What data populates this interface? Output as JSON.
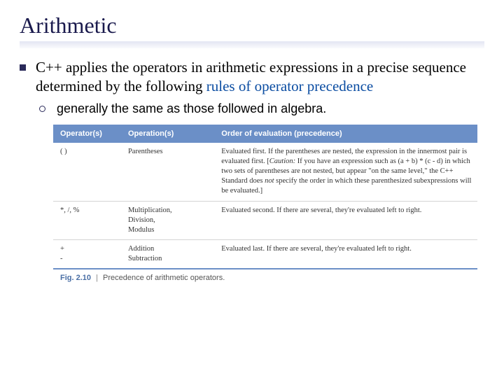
{
  "title": "Arithmetic",
  "main_bullet": {
    "prefix": "C++ applies the operators in arithmetic expressions in a precise sequence determined by the following ",
    "highlight": "rules of operator precedence"
  },
  "sub_bullet": "generally the same as those followed in algebra.",
  "table": {
    "header_bg": "#6b8fc7",
    "columns": [
      "Operator(s)",
      "Operation(s)",
      "Order of evaluation (precedence)"
    ],
    "rows": [
      {
        "op": "( )",
        "name": "Parentheses",
        "desc_pre": "Evaluated first. If the parentheses are nested, the expression in the innermost pair is evaluated first. [",
        "desc_caution": "Caution:",
        "desc_mid1": " If you have an expression such as (a + b) * (c - d) in which two sets of parentheses are not nested, but appear \"on the same level,\" the C++ Standard does ",
        "desc_not": "not",
        "desc_mid2": " specify the order in which these parenthesized subexpressions will be evaluated.]"
      },
      {
        "op": "*, /, %",
        "name": "Multiplication,\nDivision,\nModulus",
        "desc": "Evaluated second. If there are several, they're evaluated left to right."
      },
      {
        "op": "+\n-",
        "name": "Addition\nSubtraction",
        "desc": "Evaluated last. If there are several, they're evaluated left to right."
      }
    ]
  },
  "caption": {
    "label": "Fig. 2.10",
    "sep": "|",
    "text": "Precedence of arithmetic operators."
  }
}
